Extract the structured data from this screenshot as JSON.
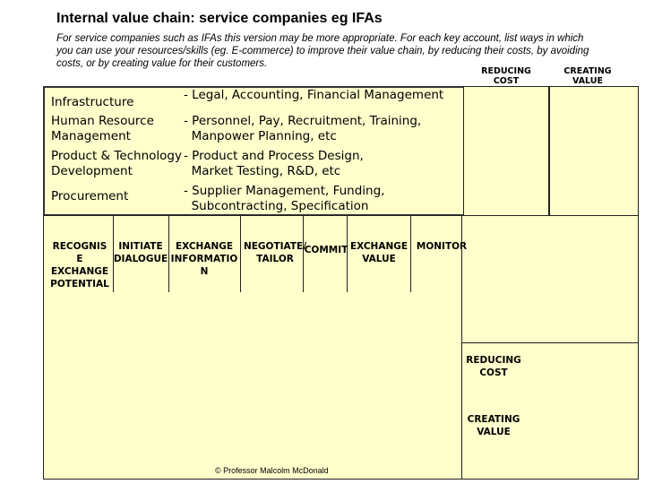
{
  "title": "Internal value chain: service companies eg IFAs",
  "intro": "For service companies such as IFAs this version may be more appropriate.  For each key account, list ways in which you can use your resources/skills (eg. E-commerce)  to improve their value chain, by reducing their costs, by avoiding costs, or by creating value for their customers.",
  "headers": {
    "reducing_cost": "REDUCING\nCOST",
    "creating_value": "CREATING\nVALUE"
  },
  "support_activities": [
    {
      "name": "Infrastructure",
      "detail": "- Legal, Accounting, Financial Management"
    },
    {
      "name": "Human Resource\nManagement",
      "detail": "- Personnel, Pay, Recruitment, Training,\n  Manpower Planning, etc"
    },
    {
      "name": "Product & Technology\nDevelopment",
      "detail": "- Product and Process Design,\n  Market Testing, R&D, etc"
    },
    {
      "name": "Procurement",
      "detail": "- Supplier Management, Funding,\n  Subcontracting, Specification"
    }
  ],
  "primary_stages": [
    "RECOGNIS\nE\nEXCHANGE\nPOTENTIAL",
    "INITIATE\nDIALOGUE",
    "EXCHANGE\nINFORMATIO\nN",
    "NEGOTIATE/\nTAILOR",
    "COMMIT",
    "EXCHANGE\nVALUE",
    "MONITOR"
  ],
  "side_labels": {
    "reducing_cost": "REDUCING\nCOST",
    "creating_value": "CREATING\nVALUE"
  },
  "credit": "© Professor Malcolm McDonald"
}
